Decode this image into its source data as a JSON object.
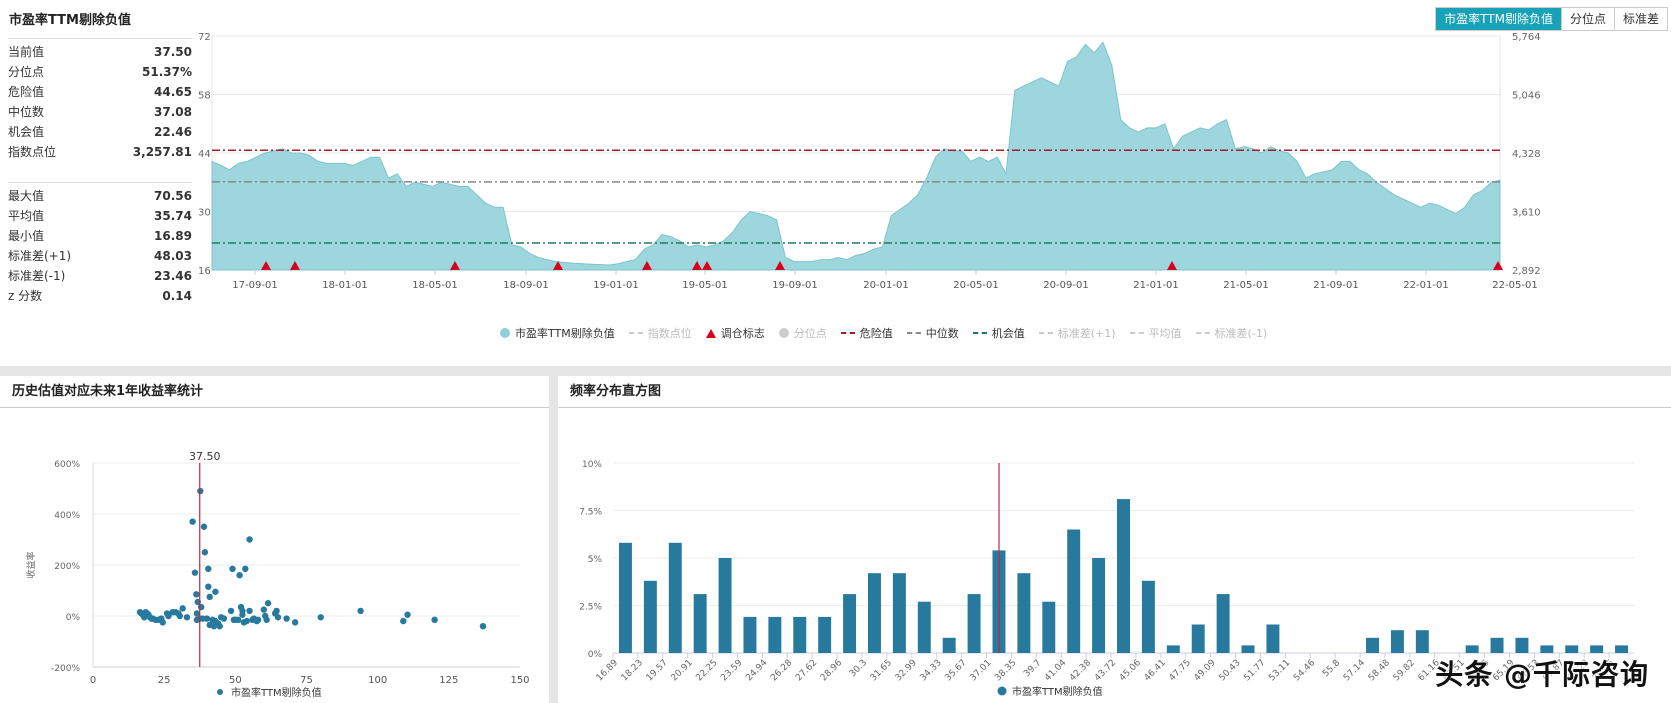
{
  "top": {
    "title": "市盈率TTM剔除负值",
    "tabs": [
      {
        "label": "市盈率TTM剔除负值",
        "active": true
      },
      {
        "label": "分位点",
        "active": false
      },
      {
        "label": "标准差",
        "active": false
      }
    ],
    "stats_group1": [
      {
        "label": "当前值",
        "value": "37.50"
      },
      {
        "label": "分位点",
        "value": "51.37%"
      },
      {
        "label": "危险值",
        "value": "44.65"
      },
      {
        "label": "中位数",
        "value": "37.08"
      },
      {
        "label": "机会值",
        "value": "22.46"
      },
      {
        "label": "指数点位",
        "value": "3,257.81"
      }
    ],
    "stats_group2": [
      {
        "label": "最大值",
        "value": "70.56"
      },
      {
        "label": "平均值",
        "value": "35.74"
      },
      {
        "label": "最小值",
        "value": "16.89"
      },
      {
        "label": "标准差(+1)",
        "value": "48.03"
      },
      {
        "label": "标准差(-1)",
        "value": "23.46"
      },
      {
        "label": "z 分数",
        "value": "0.14"
      }
    ],
    "legend": [
      {
        "label": "市盈率TTM剔除负值",
        "type": "dot",
        "color": "#8fd0d8",
        "enabled": true
      },
      {
        "label": "指数点位",
        "type": "line",
        "color": "#ccc",
        "enabled": false
      },
      {
        "label": "调仓标志",
        "type": "triangle",
        "color": "#d9001b",
        "enabled": true
      },
      {
        "label": "分位点",
        "type": "dot",
        "color": "#ccc",
        "enabled": false
      },
      {
        "label": "危险值",
        "type": "line",
        "color": "#a31f2a",
        "enabled": true
      },
      {
        "label": "中位数",
        "type": "line",
        "color": "#888888",
        "enabled": true
      },
      {
        "label": "机会值",
        "type": "line",
        "color": "#1f7a5c",
        "enabled": true
      },
      {
        "label": "标准差(+1)",
        "type": "line",
        "color": "#ccc",
        "enabled": false
      },
      {
        "label": "平均值",
        "type": "line",
        "color": "#ccc",
        "enabled": false
      },
      {
        "label": "标准差(-1)",
        "type": "line",
        "color": "#ccc",
        "enabled": false
      }
    ]
  },
  "scatter_panel": {
    "title": "历史估值对应未来1年收益率统计",
    "legend": "市盈率TTM剔除负值",
    "ylabel": "收益率",
    "current_label": "37.50"
  },
  "hist_panel": {
    "title": "频率分布直方图",
    "legend": "市盈率TTM剔除负值"
  },
  "watermark": "头条 @千际咨询",
  "chart_data": [
    {
      "type": "area",
      "title": "市盈率TTM剔除负值",
      "x_ticks": [
        "17-09-01",
        "18-01-01",
        "18-05-01",
        "18-09-01",
        "19-01-01",
        "19-05-01",
        "19-09-01",
        "20-01-01",
        "20-05-01",
        "20-09-01",
        "21-01-01",
        "21-05-01",
        "21-09-01",
        "22-01-01",
        "22-05-01"
      ],
      "y_left_ticks": [
        16,
        30,
        44,
        58,
        72
      ],
      "y_right_ticks": [
        "2,892",
        "3,610",
        "4,328",
        "5,046",
        "5,764"
      ],
      "ylim": [
        16,
        72
      ],
      "grid": true,
      "reference_lines": {
        "危险值": 44.65,
        "中位数": 37.08,
        "机会值": 22.46
      },
      "series": [
        {
          "name": "市盈率TTM剔除负值",
          "values": [
            42,
            41,
            40,
            41.5,
            42,
            43,
            44,
            44.5,
            45,
            44,
            44,
            43.5,
            42,
            41.5,
            41.5,
            41.5,
            41,
            42,
            43,
            43,
            38,
            39,
            36,
            37,
            36.5,
            36,
            37,
            36.5,
            36,
            36,
            34,
            32,
            31,
            31,
            22,
            21.5,
            20,
            19,
            18.5,
            18,
            17.8,
            17.6,
            17.5,
            17.4,
            17.3,
            17.2,
            17.5,
            18,
            18.5,
            21,
            22,
            24.5,
            24,
            23,
            21.5,
            22,
            21.5,
            22,
            23,
            25,
            28,
            30,
            29.5,
            29,
            28,
            19,
            18,
            18,
            18,
            18.5,
            18.5,
            19,
            18.5,
            19.5,
            20,
            21,
            21.5,
            29,
            30.5,
            32,
            34,
            38,
            43,
            45,
            44.5,
            44.5,
            42,
            43,
            42,
            43,
            39,
            59,
            60,
            61,
            62,
            61,
            60,
            66,
            67,
            70,
            68,
            70.5,
            65,
            52,
            50,
            49,
            50,
            50,
            51,
            45,
            48,
            49,
            50,
            49.5,
            51,
            52,
            45,
            45.5,
            45,
            44,
            45.5,
            44.5,
            44,
            42,
            38,
            39,
            39.5,
            40,
            42,
            42,
            40,
            39,
            37,
            35.5,
            34,
            33,
            32,
            31,
            32,
            31.5,
            30.5,
            29.5,
            31,
            34,
            35,
            37,
            37.5
          ]
        }
      ],
      "markers": [
        {
          "type": "调仓标志",
          "x": "17-10"
        },
        {
          "type": "调仓标志",
          "x": "17-11"
        },
        {
          "type": "调仓标志",
          "x": "18-06"
        },
        {
          "type": "调仓标志",
          "x": "18-11"
        },
        {
          "type": "调仓标志",
          "x": "19-03"
        },
        {
          "type": "调仓标志",
          "x": "19-05"
        },
        {
          "type": "调仓标志",
          "x": "19-05"
        },
        {
          "type": "调仓标志",
          "x": "19-09"
        },
        {
          "type": "调仓标志",
          "x": "21-03"
        },
        {
          "type": "调仓标志",
          "x": "22-07"
        }
      ]
    },
    {
      "type": "scatter",
      "title": "历史估值对应未来1年收益率统计",
      "xlabel": "",
      "ylabel": "收益率",
      "x_ticks": [
        0,
        25,
        50,
        75,
        100,
        125,
        150
      ],
      "y_ticks": [
        "-200%",
        "0%",
        "200%",
        "400%",
        "600%"
      ],
      "xlim": [
        0,
        150
      ],
      "ylim": [
        -200,
        600
      ],
      "vertical_line": 37.5,
      "series": [
        {
          "name": "市盈率TTM剔除负值",
          "points": [
            [
              16.5,
              15
            ],
            [
              17,
              10
            ],
            [
              17.5,
              5
            ],
            [
              18,
              -5
            ],
            [
              18.5,
              15
            ],
            [
              19,
              10
            ],
            [
              19.5,
              5
            ],
            [
              20,
              -5
            ],
            [
              20.5,
              -10
            ],
            [
              21,
              -10
            ],
            [
              22,
              -15
            ],
            [
              23,
              -15
            ],
            [
              24,
              -10
            ],
            [
              24.5,
              -25
            ],
            [
              26,
              10
            ],
            [
              26.5,
              0
            ],
            [
              28,
              15
            ],
            [
              29,
              15
            ],
            [
              30,
              10
            ],
            [
              30.5,
              0
            ],
            [
              31.5,
              30
            ],
            [
              33,
              -5
            ],
            [
              35,
              370
            ],
            [
              35.8,
              170
            ],
            [
              36.3,
              85
            ],
            [
              36.8,
              55
            ],
            [
              36.5,
              10
            ],
            [
              36.5,
              -15
            ],
            [
              37.5,
              -10
            ],
            [
              37.7,
              490
            ],
            [
              38,
              35
            ],
            [
              38.5,
              -10
            ],
            [
              39,
              350
            ],
            [
              39.3,
              250
            ],
            [
              40,
              -10
            ],
            [
              40.5,
              185
            ],
            [
              40.5,
              115
            ],
            [
              41,
              75
            ],
            [
              41,
              -35
            ],
            [
              42,
              -15
            ],
            [
              42.5,
              -40
            ],
            [
              43,
              95
            ],
            [
              43,
              -20
            ],
            [
              44,
              -30
            ],
            [
              44.5,
              -40
            ],
            [
              45,
              -5
            ],
            [
              46,
              -10
            ],
            [
              48.5,
              20
            ],
            [
              49,
              185
            ],
            [
              49.5,
              -15
            ],
            [
              50,
              -15
            ],
            [
              51,
              -15
            ],
            [
              51.5,
              160
            ],
            [
              52,
              35
            ],
            [
              52.5,
              20
            ],
            [
              52.5,
              5
            ],
            [
              53,
              -25
            ],
            [
              53.5,
              185
            ],
            [
              54,
              -20
            ],
            [
              55,
              300
            ],
            [
              55,
              20
            ],
            [
              56,
              -15
            ],
            [
              56.5,
              -10
            ],
            [
              57.5,
              -20
            ],
            [
              58,
              -15
            ],
            [
              60,
              25
            ],
            [
              60.5,
              0
            ],
            [
              61,
              -15
            ],
            [
              61.5,
              50
            ],
            [
              64,
              10
            ],
            [
              64.5,
              20
            ],
            [
              65,
              -5
            ],
            [
              68,
              -10
            ],
            [
              71,
              -25
            ],
            [
              80,
              -5
            ],
            [
              94,
              20
            ],
            [
              109,
              -20
            ],
            [
              110.5,
              5
            ],
            [
              120,
              -15
            ],
            [
              137,
              -40
            ]
          ]
        }
      ]
    },
    {
      "type": "bar",
      "title": "频率分布直方图",
      "categories": [
        "16.89",
        "18.23",
        "19.57",
        "20.91",
        "22.25",
        "23.59",
        "24.94",
        "26.28",
        "27.62",
        "28.96",
        "30.3",
        "31.65",
        "32.99",
        "34.33",
        "35.67",
        "37.01",
        "38.35",
        "39.7",
        "41.04",
        "42.38",
        "43.72",
        "45.06",
        "46.41",
        "47.75",
        "49.09",
        "50.43",
        "51.77",
        "53.11",
        "54.46",
        "55.8",
        "57.14",
        "58.48",
        "59.82",
        "61.16",
        "62.51",
        "63.85",
        "65.19",
        "66.53",
        "67.87",
        "69.22",
        "70.56"
      ],
      "values": [
        5.8,
        3.8,
        5.8,
        3.1,
        5.0,
        1.9,
        1.9,
        1.9,
        1.9,
        3.1,
        4.2,
        4.2,
        2.7,
        0.8,
        3.1,
        5.4,
        4.2,
        2.7,
        6.5,
        5.0,
        8.1,
        3.8,
        0.4,
        1.5,
        3.1,
        0.4,
        1.5,
        0,
        0,
        0,
        0.8,
        1.2,
        1.2,
        0,
        0.4,
        0.8,
        0.8,
        0.4,
        0.4,
        0.4,
        0.4
      ],
      "y_ticks": [
        "0%",
        "2.5%",
        "5%",
        "7.5%",
        "10%"
      ],
      "ylim": [
        0,
        10
      ],
      "vertical_line": 37.5,
      "series_name": "市盈率TTM剔除负值"
    }
  ]
}
